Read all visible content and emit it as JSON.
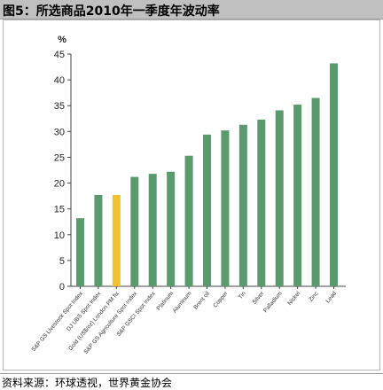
{
  "header": {
    "title": "图5：所选商品2010年一季度年波动率"
  },
  "footer": {
    "source": "资料来源：环球透视，世界黄金协会"
  },
  "chart_data": {
    "type": "bar",
    "unit_label": "%",
    "categories": [
      "S&P GS Livestock Spot Index",
      "DJ UBS Spot Index",
      "Gold (US$/oz) London PM fix",
      "S&P GS Agriculture Spot Index",
      "S&P GSCI Spot Index",
      "Platinum",
      "Aluminum",
      "Brent oil",
      "Copper",
      "Tin",
      "Silver",
      "Palladium",
      "Nickel",
      "Zinc",
      "Lead"
    ],
    "values": [
      13.2,
      17.7,
      17.7,
      21.2,
      21.8,
      22.2,
      25.3,
      29.4,
      30.2,
      31.3,
      32.3,
      34.1,
      35.2,
      36.5,
      43.2
    ],
    "highlight_index": 2,
    "ylim": [
      0,
      45
    ],
    "yticks": [
      0,
      5,
      10,
      15,
      20,
      25,
      30,
      35,
      40,
      45
    ],
    "grid": false,
    "colors": {
      "bar": "#5a9a6e",
      "highlight": "#f2c12e",
      "axis": "#444444"
    }
  }
}
